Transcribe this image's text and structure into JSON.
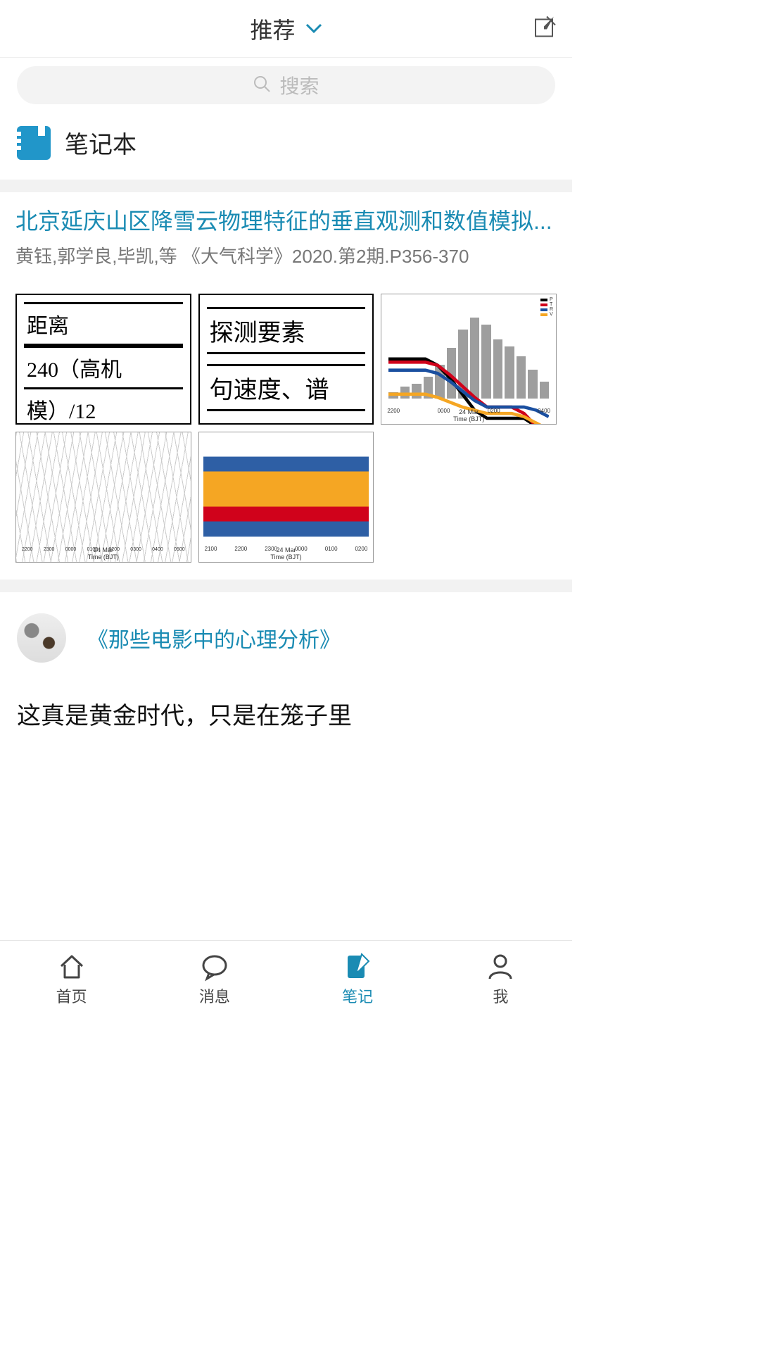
{
  "header": {
    "title": "推荐",
    "chevron_color": "#1a8bb3",
    "compose_color": "#555555"
  },
  "search": {
    "placeholder": "搜索",
    "icon_color": "#bbbbbb",
    "bg": "#f3f3f3"
  },
  "notebook": {
    "label": "笔记本",
    "icon_bg": "#2196c9"
  },
  "article": {
    "title": "北京延庆山区降雪云物理特征的垂直观测和数值模拟...",
    "meta": "黄钰,郭学良,毕凯,等 《大气科学》2020.第2期.P356-370",
    "title_color": "#1a8bb3",
    "meta_color": "#777777",
    "thumbs": {
      "t1_lines": [
        "距离",
        "240（高机",
        "模）/12"
      ],
      "t2_lines": [
        "探测要素",
        "句速度、谱"
      ],
      "t3": {
        "type": "bar+line",
        "bar_color": "#9e9e9e",
        "bars": [
          8,
          14,
          18,
          26,
          40,
          60,
          82,
          96,
          88,
          70,
          62,
          50,
          34,
          20
        ],
        "lines": [
          {
            "color": "#000000",
            "label": "P",
            "points": [
              72,
              72,
              72,
              72,
              68,
              60,
              50,
              40,
              35,
              35,
              35,
              35,
              30,
              22
            ]
          },
          {
            "color": "#d0021b",
            "label": "T",
            "points": [
              70,
              70,
              70,
              70,
              68,
              62,
              55,
              48,
              42,
              42,
              42,
              38,
              30,
              20
            ]
          },
          {
            "color": "#1a4fa0",
            "label": "R",
            "points": [
              65,
              65,
              65,
              65,
              63,
              58,
              52,
              46,
              42,
              42,
              42,
              42,
              40,
              36
            ]
          },
          {
            "color": "#f5a623",
            "label": "V",
            "points": [
              50,
              50,
              50,
              50,
              48,
              45,
              42,
              40,
              38,
              38,
              38,
              36,
              32,
              28
            ]
          }
        ],
        "xticks": [
          "2200",
          "0000",
          "0200",
          "0400"
        ],
        "axis_main": "24 Mar",
        "xlabel": "Time (BJT)"
      },
      "t4": {
        "type": "contour",
        "xticks": [
          "2200",
          "2300",
          "0000",
          "0100",
          "0200",
          "0300",
          "0400",
          "0500"
        ],
        "axis_main": "24 Mar",
        "xlabel": "Time (BJT)"
      },
      "t5": {
        "type": "heatmap",
        "colors": [
          "#ffffff",
          "#2e5fa5",
          "#f5a623",
          "#d0021b"
        ],
        "xticks": [
          "2100",
          "2200",
          "2300",
          "0000",
          "0100",
          "0200"
        ],
        "axis_main": "24 Mar",
        "xlabel": "Time (BJT)"
      }
    }
  },
  "card2": {
    "title": "《那些电影中的心理分析》",
    "quote": "这真是黄金时代，只是在笼子里",
    "title_color": "#1a8bb3"
  },
  "tabs": {
    "items": [
      {
        "label": "首页",
        "icon": "home"
      },
      {
        "label": "消息",
        "icon": "chat"
      },
      {
        "label": "笔记",
        "icon": "note"
      },
      {
        "label": "我",
        "icon": "person"
      }
    ],
    "active_index": 2,
    "active_color": "#1a8bb3",
    "inactive_color": "#444444"
  }
}
